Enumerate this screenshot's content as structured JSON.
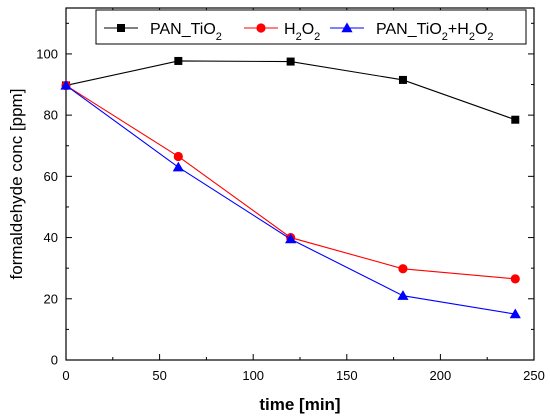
{
  "chart_data": {
    "type": "line",
    "xlabel": "time [min]",
    "ylabel": "formaldehyde conc [ppm]",
    "xlim": [
      0,
      250
    ],
    "ylim": [
      0,
      115
    ],
    "x_ticks": [
      "0",
      "50",
      "100",
      "150",
      "200",
      "250"
    ],
    "y_ticks": [
      "0",
      "20",
      "40",
      "60",
      "80",
      "100"
    ],
    "grid": false,
    "legend_position": "top",
    "series": [
      {
        "name": "PAN_TiO2",
        "color": "#000000",
        "marker": "square",
        "x": [
          0,
          60,
          120,
          180,
          240
        ],
        "y": [
          89.7,
          97.7,
          97.5,
          91.5,
          78.5
        ]
      },
      {
        "name": "H2O2",
        "color": "#ff0000",
        "marker": "circle",
        "x": [
          0,
          60,
          120,
          180,
          240
        ],
        "y": [
          89.7,
          66.5,
          40.0,
          29.8,
          26.5
        ]
      },
      {
        "name": "PAN_TiO2+H2O2",
        "color": "#0000ff",
        "marker": "triangle",
        "x": [
          0,
          60,
          120,
          180,
          240
        ],
        "y": [
          89.7,
          63.0,
          39.5,
          21.0,
          15.0
        ]
      }
    ]
  }
}
